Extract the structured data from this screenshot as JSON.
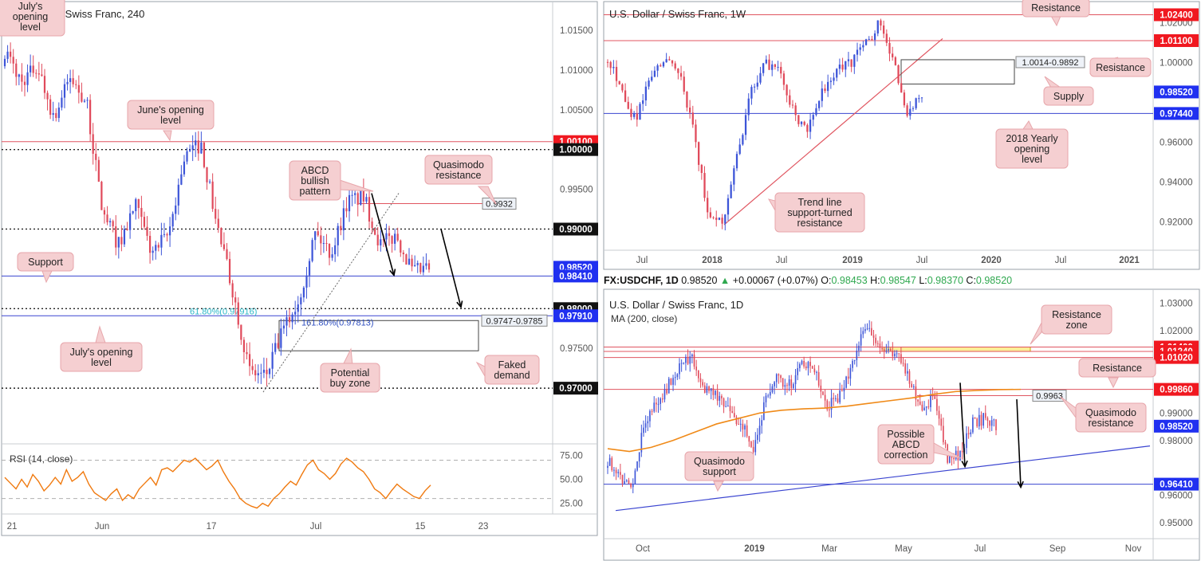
{
  "colors": {
    "up": "#3d55d8",
    "down": "#e04a5b",
    "red_line": "#e05560",
    "blue_line": "#3a44d0",
    "callout_bg": "#f5cfd1",
    "callout_border": "#e7a6ab",
    "rsi": "#f07a10",
    "ma": "#f08a18",
    "fib": "#2cb8c8",
    "yellow_zone": "#fbee98",
    "price_blue": "#2030f0",
    "price_red": "#f01820"
  },
  "chart_data": [
    {
      "id": "h4",
      "type": "candlestick",
      "title": "U.S. Dollar / Swiss Franc, 240",
      "ylim": [
        0.9635,
        1.018
      ],
      "x_ticks": [
        "21",
        "Jun",
        "17",
        "Jul",
        "15",
        "23"
      ],
      "y_ticks": [
        "1.01500",
        "1.01000",
        "1.00500",
        "0.99500",
        "0.97500"
      ],
      "price_tags": [
        {
          "value": "1.00100",
          "style": "red"
        },
        {
          "value": "1.00000",
          "style": "black"
        },
        {
          "value": "0.99000",
          "style": "black"
        },
        {
          "value": "0.98520",
          "style": "blue"
        },
        {
          "value": "0.98410",
          "style": "blue"
        },
        {
          "value": "0.98000",
          "style": "black"
        },
        {
          "value": "0.97910",
          "style": "blue"
        },
        {
          "value": "0.97000",
          "style": "black"
        }
      ],
      "levels": [
        {
          "value": 1.001,
          "kind": "red"
        },
        {
          "value": 1.0,
          "kind": "dotted"
        },
        {
          "value": 0.99,
          "kind": "dotted"
        },
        {
          "value": 0.9841,
          "kind": "blue"
        },
        {
          "value": 0.98,
          "kind": "dotted"
        },
        {
          "value": 0.9791,
          "kind": "blue"
        },
        {
          "value": 0.97,
          "kind": "dotted"
        }
      ],
      "zone_label": "0.9747-0.9785",
      "fib_label": "61.80%(0.97916)",
      "ext_label": "161.80%(0.97813)",
      "qm_tag": "0.9932",
      "callouts": {
        "julys_opening_top": "July's opening level",
        "junes_opening": "June's opening level",
        "abcd": "ABCD bullish pattern",
        "quasimodo": "Quasimodo resistance",
        "support": "Support",
        "julys_opening": "July's opening level",
        "potential_buy": "Potential buy zone",
        "faked_demand": "Faked demand"
      },
      "rsi": {
        "label": "RSI (14, close)",
        "y_ticks": [
          "75.00",
          "50.00",
          "25.00"
        ],
        "values": [
          52,
          46,
          40,
          50,
          42,
          55,
          48,
          38,
          44,
          52,
          45,
          60,
          48,
          52,
          58,
          45,
          36,
          32,
          28,
          35,
          40,
          28,
          34,
          30,
          40,
          46,
          52,
          44,
          60,
          62,
          58,
          64,
          70,
          68,
          72,
          66,
          60,
          64,
          70,
          58,
          48,
          40,
          30,
          25,
          22,
          20,
          25,
          22,
          30,
          35,
          42,
          48,
          44,
          55,
          65,
          70,
          60,
          56,
          50,
          56,
          66,
          72,
          68,
          62,
          58,
          50,
          40,
          36,
          30,
          38,
          45,
          40,
          36,
          32,
          30,
          38,
          44
        ]
      }
    },
    {
      "id": "weekly",
      "type": "candlestick",
      "title": "U.S. Dollar / Swiss Franc, 1W",
      "ylim": [
        0.9065,
        1.0282
      ],
      "x_ticks": [
        "Jul",
        "2018",
        "Jul",
        "2019",
        "Jul",
        "2020",
        "Jul",
        "2021"
      ],
      "y_ticks": [
        "1.02000",
        "1.00000",
        "0.96000",
        "0.94000",
        "0.92000"
      ],
      "price_tags": [
        {
          "value": "1.02400",
          "style": "red"
        },
        {
          "value": "1.01100",
          "style": "red"
        },
        {
          "value": "0.98520",
          "style": "blue"
        },
        {
          "value": "0.97440",
          "style": "blue"
        }
      ],
      "supply_label": "1.0014-0.9892",
      "callouts": {
        "resistance_top": "Resistance",
        "resistance_right": "Resistance",
        "supply": "Supply",
        "yearly_open": "2018 Yearly opening level",
        "trendline": "Trend line support-turned resistance"
      }
    },
    {
      "id": "daily",
      "type": "candlestick",
      "title": "U.S. Dollar / Swiss Franc, 1D",
      "ylim": [
        0.946,
        1.033
      ],
      "x_ticks": [
        "Oct",
        "2019",
        "Mar",
        "May",
        "Jul",
        "Sep",
        "Nov"
      ],
      "y_ticks": [
        "1.03000",
        "1.02000",
        "0.99000",
        "0.98000",
        "0.96000",
        "0.95000"
      ],
      "indicator_label": "MA (200, close)",
      "price_tags": [
        {
          "value": "1.01400",
          "style": "red"
        },
        {
          "value": "1.01240",
          "style": "red"
        },
        {
          "value": "1.01020",
          "style": "red"
        },
        {
          "value": "0.99860",
          "style": "red"
        },
        {
          "value": "0.98520",
          "style": "blue"
        },
        {
          "value": "0.96410",
          "style": "blue"
        }
      ],
      "qm_tag": "0.9963",
      "callouts": {
        "resistance_zone": "Resistance zone",
        "resistance": "Resistance",
        "quasimodo_res": "Quasimodo resistance",
        "abcd": "Possible ABCD correction",
        "quasimodo_sup": "Quasimodo support"
      }
    }
  ],
  "ohlc_bar": {
    "symbol": "FX:USDCHF, 1D",
    "last": "0.98520",
    "change": "+0.00067 (+0.07%)",
    "o_label": "O:",
    "o": "0.98453",
    "h_label": "H:",
    "h": "0.98547",
    "l_label": "L:",
    "l": "0.98370",
    "c_label": "C:",
    "c": "0.98520"
  }
}
